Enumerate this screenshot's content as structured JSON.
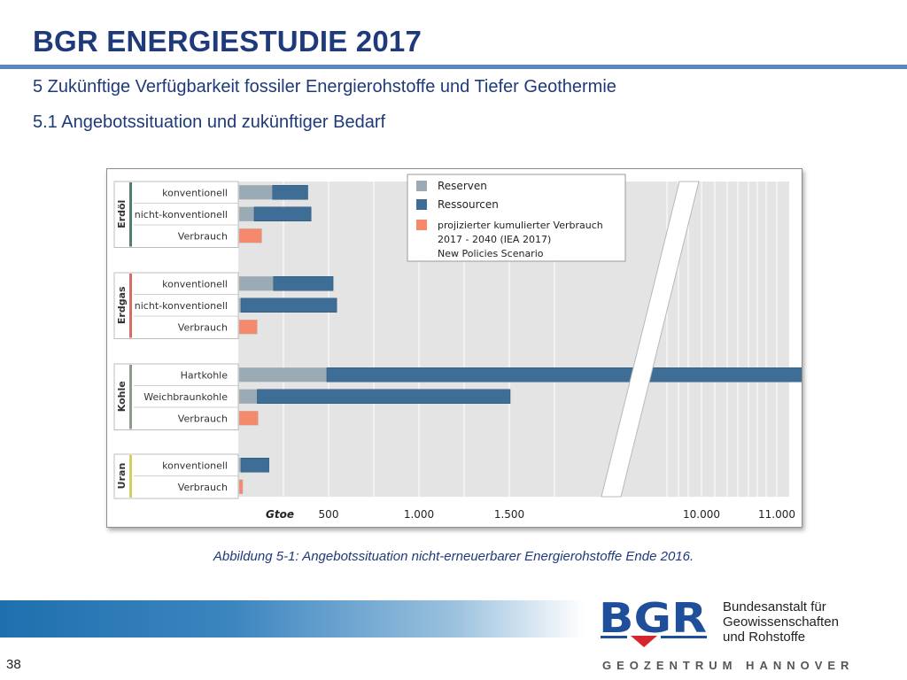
{
  "slide": {
    "title": "BGR ENERGIESTUDIE 2017",
    "subtitle1": "5 Zukünftige Verfügbarkeit fossiler Energierohstoffe und Tiefer Geothermie",
    "subtitle2": "5.1 Angebotssituation und zukünftiger Bedarf",
    "caption": "Abbildung 5-1: Angebotssituation nicht-erneuerbarer Energierohstoffe Ende 2016.",
    "page_number": "38"
  },
  "footer": {
    "logo_text": "BGR",
    "institution_lines": [
      "Bundesanstalt für",
      "Geowissenschaften",
      "und Rohstoffe"
    ],
    "geozentrum": "GEOZENTRUM HANNOVER"
  },
  "colors": {
    "reserven": "#9aabb5",
    "ressourcen": "#3e6d96",
    "verbrauch": "#f4896c",
    "title": "#1f3a7a",
    "erdoel": "#4f7e6f",
    "erdgas": "#d96b66",
    "kohle": "#8f9a8a",
    "uran": "#d8cc5c"
  },
  "chart_data": {
    "type": "bar",
    "orientation": "horizontal",
    "stacked": true,
    "unit_label": "Gtoe",
    "x_ticks": [
      "500",
      "1.000",
      "1.500",
      "10.000",
      "11.000"
    ],
    "axis_break": "between 1.500 and 10.000",
    "grid": true,
    "legend": {
      "position": "top-right",
      "entries": [
        {
          "key": "reserven",
          "label": "Reserven"
        },
        {
          "key": "ressourcen",
          "label": "Ressourcen"
        },
        {
          "key": "verbrauch",
          "lines": [
            "projizierter kumulierter Verbrauch",
            "2017 - 2040 (IEA 2017)",
            "New Policies Scenario"
          ]
        }
      ]
    },
    "groups": [
      {
        "name": "Erdöl",
        "color_key": "erdoel",
        "rows": [
          {
            "label": "konventionell",
            "reserven": 185,
            "ressourcen": 195
          },
          {
            "label": "nicht-konventionell",
            "reserven": 83,
            "ressourcen": 315
          },
          {
            "label": "Verbrauch",
            "verbrauch": 125
          }
        ]
      },
      {
        "name": "Erdgas",
        "color_key": "erdgas",
        "rows": [
          {
            "label": "konventionell",
            "reserven": 190,
            "ressourcen": 330
          },
          {
            "label": "nicht-konventionell",
            "reserven": 10,
            "ressourcen": 530
          },
          {
            "label": "Verbrauch",
            "verbrauch": 100
          }
        ]
      },
      {
        "name": "Kohle",
        "color_key": "kohle",
        "rows": [
          {
            "label": "Hartkohle",
            "reserven": 485,
            "ressourcen": 17315
          },
          {
            "label": "Weichbraunkohle",
            "reserven": 100,
            "ressourcen": 1400
          },
          {
            "label": "Verbrauch",
            "verbrauch": 105
          }
        ]
      },
      {
        "name": "Uran",
        "color_key": "uran",
        "rows": [
          {
            "label": "konventionell",
            "reserven": 10,
            "ressourcen": 155
          },
          {
            "label": "Verbrauch",
            "verbrauch": 20
          }
        ]
      }
    ]
  }
}
